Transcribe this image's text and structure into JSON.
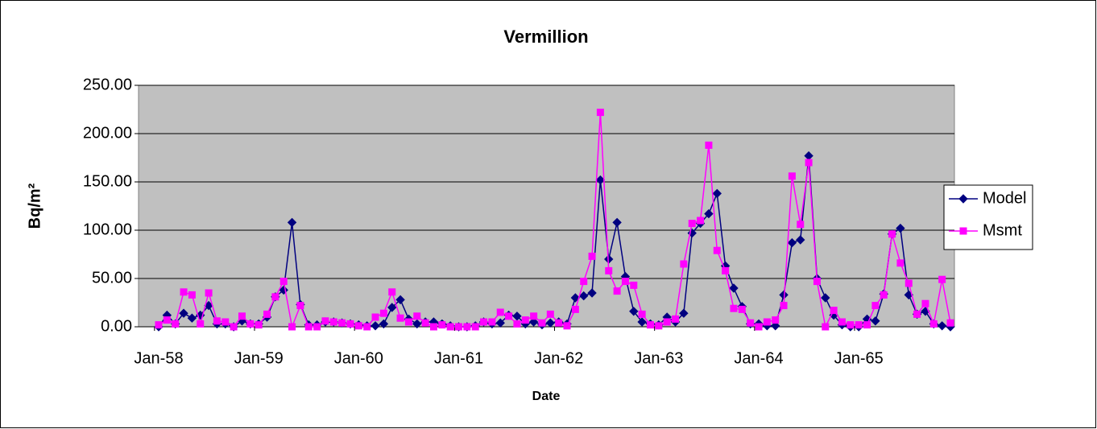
{
  "chart_data": {
    "type": "line",
    "title": "Vermillion",
    "x_label": "Date",
    "y_label": "Bq/m²",
    "categories": [
      "Jan-58",
      null,
      null,
      null,
      null,
      null,
      null,
      null,
      null,
      null,
      null,
      null,
      "Jan-59",
      null,
      null,
      null,
      null,
      null,
      null,
      null,
      null,
      null,
      null,
      null,
      "Jan-60",
      null,
      null,
      null,
      null,
      null,
      null,
      null,
      null,
      null,
      null,
      null,
      "Jan-61",
      null,
      null,
      null,
      null,
      null,
      null,
      null,
      null,
      null,
      null,
      null,
      "Jan-62",
      null,
      null,
      null,
      null,
      null,
      null,
      null,
      null,
      null,
      null,
      null,
      "Jan-63",
      null,
      null,
      null,
      null,
      null,
      null,
      null,
      null,
      null,
      null,
      null,
      "Jan-64",
      null,
      null,
      null,
      null,
      null,
      null,
      null,
      null,
      null,
      null,
      null,
      "Jan-65",
      null,
      null,
      null,
      null,
      null,
      null,
      null,
      null,
      null,
      null,
      null
    ],
    "series": [
      {
        "name": "Model",
        "color": "#000080",
        "marker": "diamond",
        "values": [
          0,
          12,
          3,
          14,
          9,
          12,
          22,
          3,
          3,
          0,
          6,
          3,
          3,
          10,
          31,
          38,
          108,
          23,
          2,
          2,
          5,
          5,
          4,
          3,
          2,
          1,
          1,
          3,
          20,
          28,
          8,
          3,
          5,
          5,
          3,
          1,
          0,
          0,
          1,
          5,
          3,
          4,
          12,
          11,
          3,
          5,
          2,
          4,
          5,
          3,
          30,
          32,
          35,
          152,
          70,
          108,
          52,
          16,
          5,
          3,
          2,
          10,
          5,
          14,
          97,
          107,
          117,
          138,
          63,
          40,
          21,
          3,
          3,
          1,
          1,
          33,
          87,
          90,
          177,
          50,
          30,
          12,
          2,
          0,
          0,
          8,
          6,
          34,
          96,
          102,
          33,
          13,
          16,
          3,
          1,
          0
        ]
      },
      {
        "name": "Msmt",
        "color": "#FF00FF",
        "marker": "square",
        "values": [
          2,
          7,
          3,
          36,
          33,
          3,
          35,
          6,
          5,
          0,
          11,
          3,
          2,
          13,
          31,
          47,
          0,
          22,
          0,
          0,
          6,
          5,
          4,
          3,
          1,
          0,
          10,
          14,
          36,
          9,
          5,
          11,
          4,
          0,
          2,
          0,
          0,
          0,
          0,
          5,
          5,
          15,
          11,
          3,
          7,
          11,
          4,
          13,
          4,
          1,
          18,
          47,
          73,
          222,
          58,
          37,
          47,
          43,
          13,
          2,
          1,
          5,
          8,
          65,
          107,
          110,
          188,
          79,
          58,
          19,
          18,
          4,
          0,
          5,
          7,
          22,
          156,
          106,
          170,
          47,
          0,
          17,
          5,
          2,
          2,
          2,
          22,
          33,
          96,
          66,
          45,
          13,
          24,
          3,
          49,
          4
        ]
      }
    ],
    "ylim": [
      0,
      250
    ],
    "yticks": [
      {
        "value": 0,
        "label": "0.00"
      },
      {
        "value": 50,
        "label": "50.00"
      },
      {
        "value": 100,
        "label": "100.00"
      },
      {
        "value": 150,
        "label": "150.00"
      },
      {
        "value": 200,
        "label": "200.00"
      },
      {
        "value": 250,
        "label": "250.00"
      }
    ],
    "grid": true,
    "legend": "right"
  }
}
